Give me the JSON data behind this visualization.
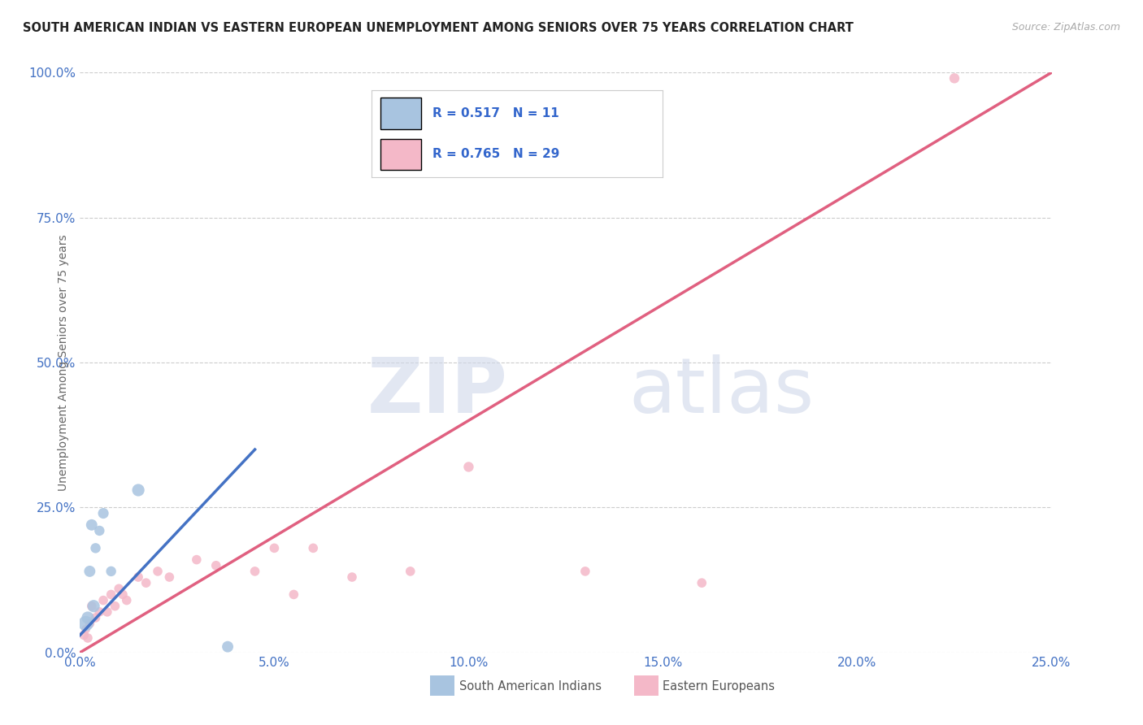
{
  "title": "SOUTH AMERICAN INDIAN VS EASTERN EUROPEAN UNEMPLOYMENT AMONG SENIORS OVER 75 YEARS CORRELATION CHART",
  "source": "Source: ZipAtlas.com",
  "ylabel": "Unemployment Among Seniors over 75 years",
  "xlim": [
    0.0,
    25.0
  ],
  "ylim": [
    0.0,
    100.0
  ],
  "xticks": [
    0.0,
    5.0,
    10.0,
    15.0,
    20.0,
    25.0
  ],
  "yticks": [
    0.0,
    25.0,
    50.0,
    75.0,
    100.0
  ],
  "blue_R": "0.517",
  "blue_N": "11",
  "pink_R": "0.765",
  "pink_N": "29",
  "blue_color": "#a8c4e0",
  "blue_line_color": "#4472c4",
  "pink_color": "#f4b8c8",
  "pink_line_color": "#e06080",
  "legend_label_blue": "South American Indians",
  "legend_label_pink": "Eastern Europeans",
  "watermark_zip": "ZIP",
  "watermark_atlas": "atlas",
  "background_color": "#ffffff",
  "grid_color": "#cccccc",
  "tick_color": "#4472c4",
  "blue_x": [
    0.15,
    0.2,
    0.25,
    0.3,
    0.35,
    0.4,
    0.5,
    0.6,
    0.8,
    1.5,
    3.8
  ],
  "blue_y": [
    5.0,
    6.0,
    14.0,
    22.0,
    8.0,
    18.0,
    21.0,
    24.0,
    14.0,
    28.0,
    1.0
  ],
  "blue_sizes": [
    180,
    120,
    100,
    100,
    120,
    80,
    80,
    90,
    80,
    120,
    100
  ],
  "pink_x": [
    0.1,
    0.15,
    0.2,
    0.25,
    0.3,
    0.4,
    0.5,
    0.6,
    0.7,
    0.8,
    0.9,
    1.0,
    1.1,
    1.2,
    1.5,
    1.7,
    2.0,
    2.3,
    3.0,
    3.5,
    4.5,
    5.0,
    5.5,
    6.0,
    7.0,
    8.5,
    10.0,
    13.0,
    16.0
  ],
  "pink_y": [
    3.0,
    4.0,
    2.5,
    5.0,
    8.0,
    6.0,
    7.0,
    9.0,
    7.0,
    10.0,
    8.0,
    11.0,
    10.0,
    9.0,
    13.0,
    12.0,
    14.0,
    13.0,
    16.0,
    15.0,
    14.0,
    18.0,
    10.0,
    18.0,
    13.0,
    14.0,
    32.0,
    14.0,
    12.0
  ],
  "pink_sizes": [
    70,
    60,
    70,
    70,
    70,
    70,
    70,
    70,
    70,
    70,
    70,
    70,
    70,
    70,
    70,
    70,
    70,
    70,
    70,
    70,
    70,
    70,
    70,
    70,
    70,
    70,
    80,
    70,
    70
  ],
  "pink_outlier_x": [
    22.5
  ],
  "pink_outlier_y": [
    99.0
  ],
  "pink_outlier_size": [
    80
  ],
  "blue_line_x0": 0.0,
  "blue_line_y0": 3.0,
  "blue_line_x1": 4.5,
  "blue_line_y1": 35.0,
  "pink_line_x0": 0.0,
  "pink_line_y0": 0.0,
  "pink_line_x1": 25.0,
  "pink_line_y1": 100.0,
  "ref_line_x0": 0.0,
  "ref_line_y0": 0.0,
  "ref_line_x1": 25.0,
  "ref_line_y1": 100.0
}
